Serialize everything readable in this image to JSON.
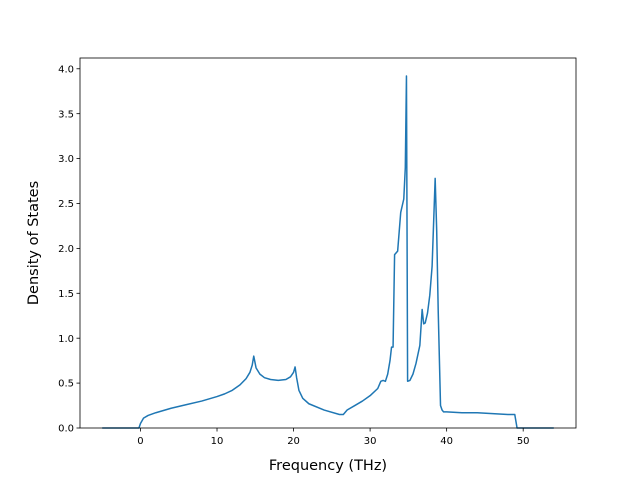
{
  "chart_data": {
    "type": "line",
    "title": "",
    "xlabel": "Frequency (THz)",
    "ylabel": "Density of States",
    "xlim": [
      -7.9,
      56.9
    ],
    "ylim": [
      0.0,
      4.12
    ],
    "x_ticks": [
      0,
      10,
      20,
      30,
      40,
      50
    ],
    "y_ticks": [
      0.0,
      0.5,
      1.0,
      1.5,
      2.0,
      2.5,
      3.0,
      3.5,
      4.0
    ],
    "y_tick_labels": [
      "0.0",
      "0.5",
      "1.0",
      "1.5",
      "2.0",
      "2.5",
      "3.0",
      "3.5",
      "4.0"
    ],
    "grid": false,
    "line_color": "#1f77b4",
    "series": [
      {
        "x": [
          -5.0,
          -0.2,
          0.0,
          0.4,
          1.0,
          2.0,
          4.0,
          6.0,
          8.0,
          10.0,
          11.0,
          12.0,
          13.0,
          13.8,
          14.3,
          14.6,
          14.8,
          15.1,
          15.6,
          16.2,
          17.0,
          18.0,
          19.0,
          19.6,
          20.0,
          20.2,
          20.4,
          20.7,
          21.2,
          22.0,
          24.0,
          26.0,
          26.5,
          27.0,
          28.0,
          29.0,
          30.0,
          31.0,
          31.4,
          31.7,
          32.0,
          32.3,
          32.6,
          32.8,
          33.0,
          33.2,
          33.6,
          34.0,
          34.4,
          34.6,
          34.75,
          34.9,
          35.2,
          35.6,
          36.0,
          36.5,
          36.8,
          37.0,
          37.2,
          37.5,
          37.8,
          38.1,
          38.5,
          38.7,
          38.9,
          39.2,
          39.4,
          39.6,
          40.0,
          42.0,
          44.0,
          46.0,
          48.0,
          48.9,
          49.2,
          50.0,
          52.0,
          54.0
        ],
        "y": [
          0.0,
          0.0,
          0.05,
          0.11,
          0.14,
          0.17,
          0.22,
          0.26,
          0.3,
          0.35,
          0.38,
          0.42,
          0.48,
          0.55,
          0.62,
          0.7,
          0.8,
          0.67,
          0.6,
          0.56,
          0.54,
          0.53,
          0.54,
          0.57,
          0.62,
          0.68,
          0.56,
          0.42,
          0.33,
          0.27,
          0.2,
          0.15,
          0.15,
          0.2,
          0.25,
          0.3,
          0.36,
          0.44,
          0.52,
          0.53,
          0.52,
          0.6,
          0.75,
          0.9,
          0.9,
          1.93,
          1.97,
          2.4,
          2.55,
          2.9,
          3.92,
          0.52,
          0.53,
          0.6,
          0.72,
          0.92,
          1.32,
          1.16,
          1.17,
          1.28,
          1.48,
          1.8,
          2.78,
          2.2,
          1.3,
          0.25,
          0.2,
          0.18,
          0.18,
          0.17,
          0.17,
          0.16,
          0.15,
          0.15,
          0.0,
          0.0,
          0.0,
          0.0
        ]
      }
    ]
  }
}
